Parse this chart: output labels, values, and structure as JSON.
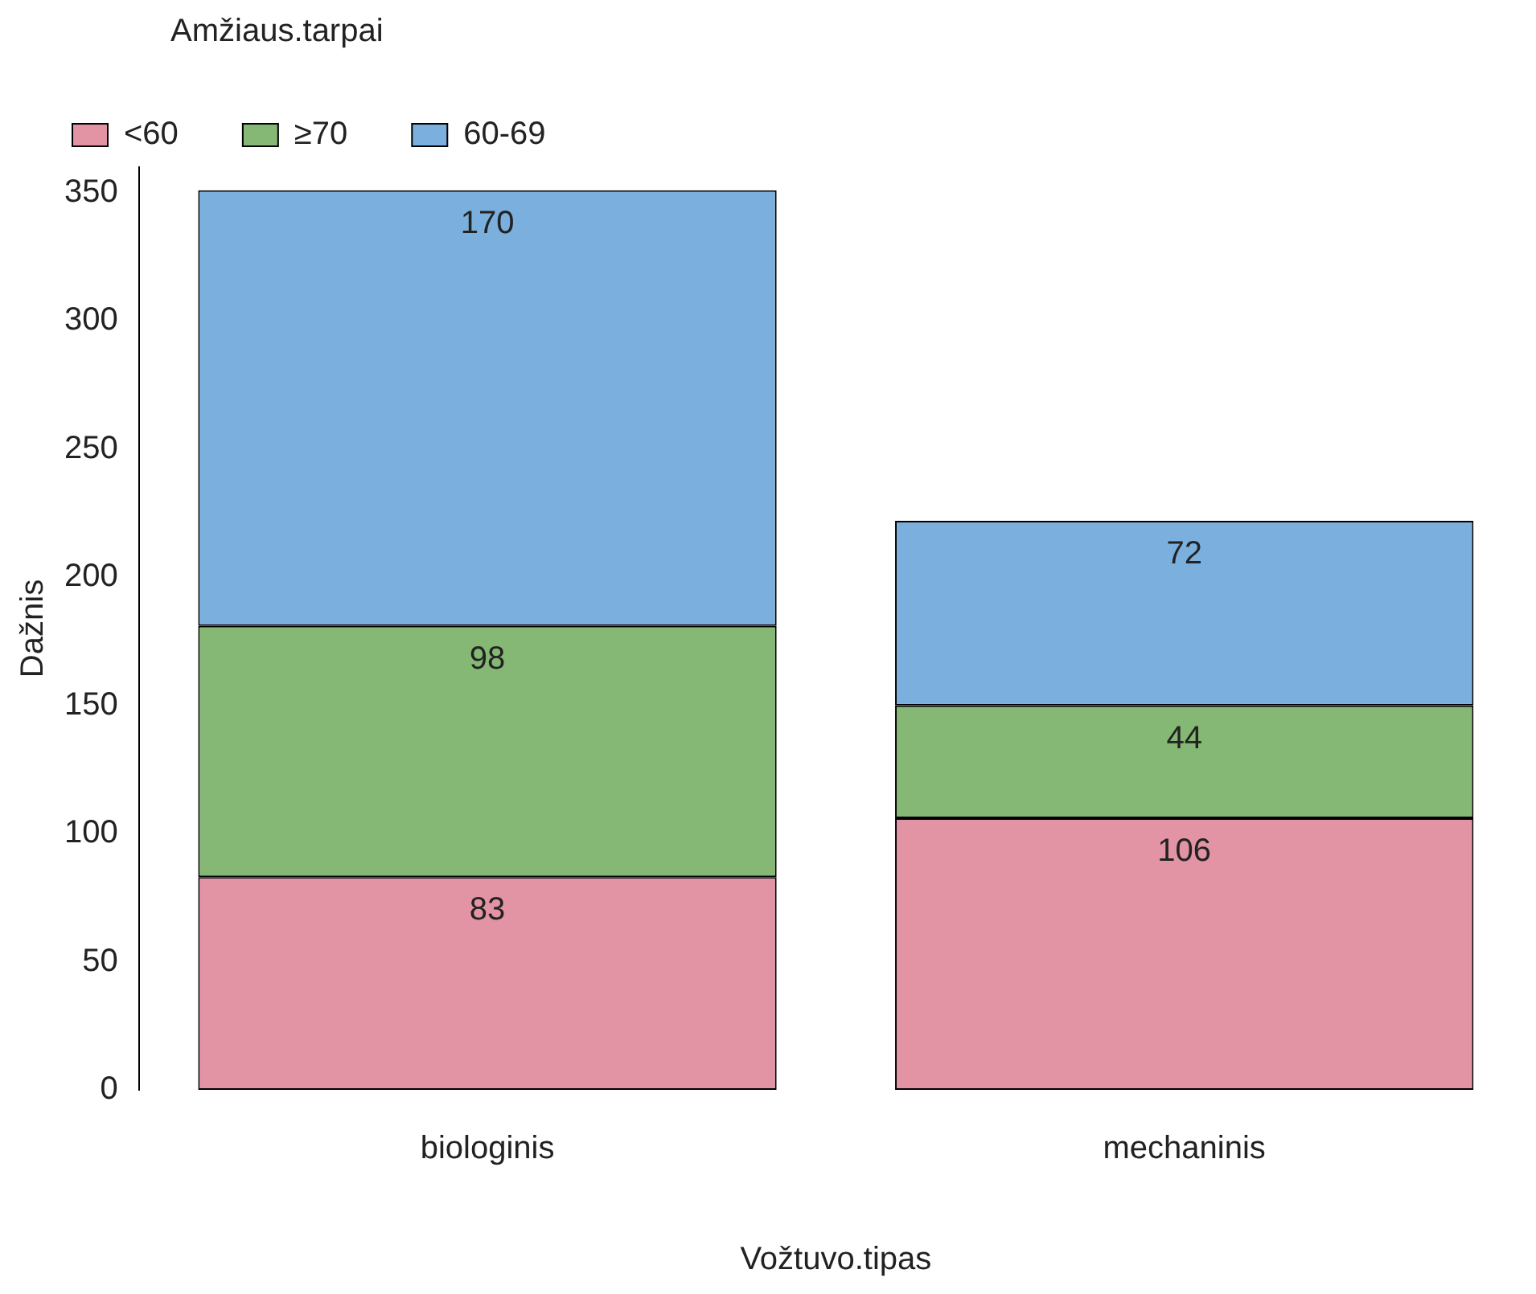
{
  "chart_data": {
    "type": "bar",
    "stacked": true,
    "data_labels": true,
    "xlabel": "Vožtuvo.tipas",
    "ylabel": "Dažnis",
    "legend_title": "Amžiaus.tarpai",
    "legend": "top",
    "grid": false,
    "categories": [
      "biologinis",
      "mechaninis"
    ],
    "ylim": [
      0,
      360
    ],
    "yticks": [
      0,
      50,
      100,
      150,
      200,
      250,
      300,
      350
    ],
    "series": [
      {
        "name": "<60",
        "color": "#e293a4",
        "values": [
          83,
          106
        ]
      },
      {
        "name": "≥70",
        "color": "#84b874",
        "values": [
          98,
          44
        ]
      },
      {
        "name": "60-69",
        "color": "#7bafdd",
        "values": [
          170,
          72
        ]
      }
    ]
  }
}
